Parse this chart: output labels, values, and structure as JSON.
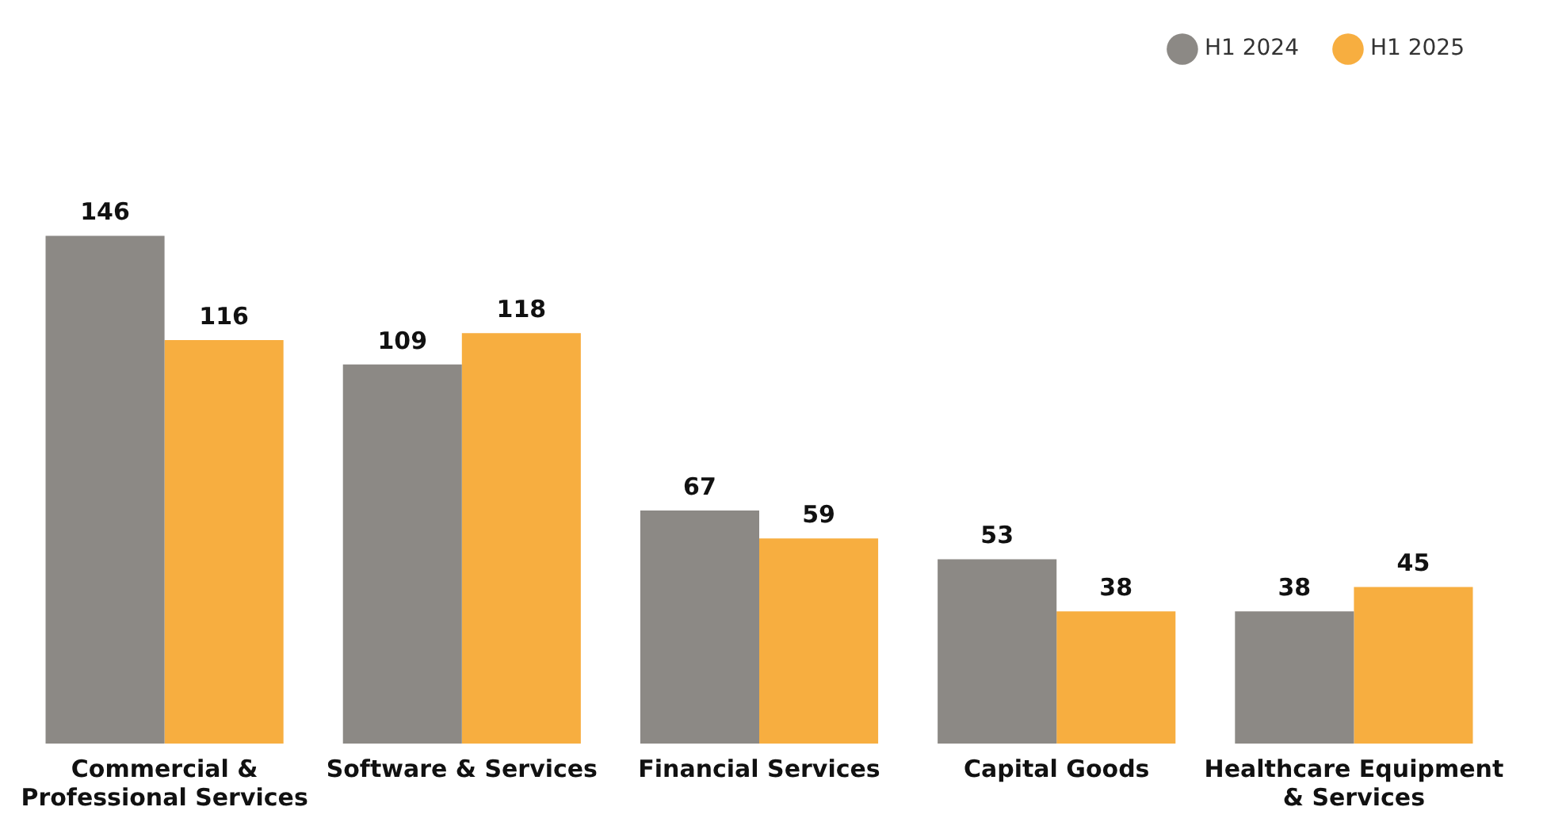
{
  "chart_data": {
    "type": "bar",
    "categories": [
      "Commercial & Professional Services",
      "Software & Services",
      "Financial Services",
      "Capital Goods",
      "Healthcare Equipment & Services"
    ],
    "series": [
      {
        "name": "H1 2024",
        "color": "#8c8985",
        "values": [
          146,
          109,
          67,
          53,
          38
        ]
      },
      {
        "name": "H1 2025",
        "color": "#f7ae40",
        "values": [
          116,
          118,
          59,
          38,
          45
        ]
      }
    ],
    "tick_labels": "x",
    "data_labels": true,
    "legend": "top right",
    "grid": false
  }
}
